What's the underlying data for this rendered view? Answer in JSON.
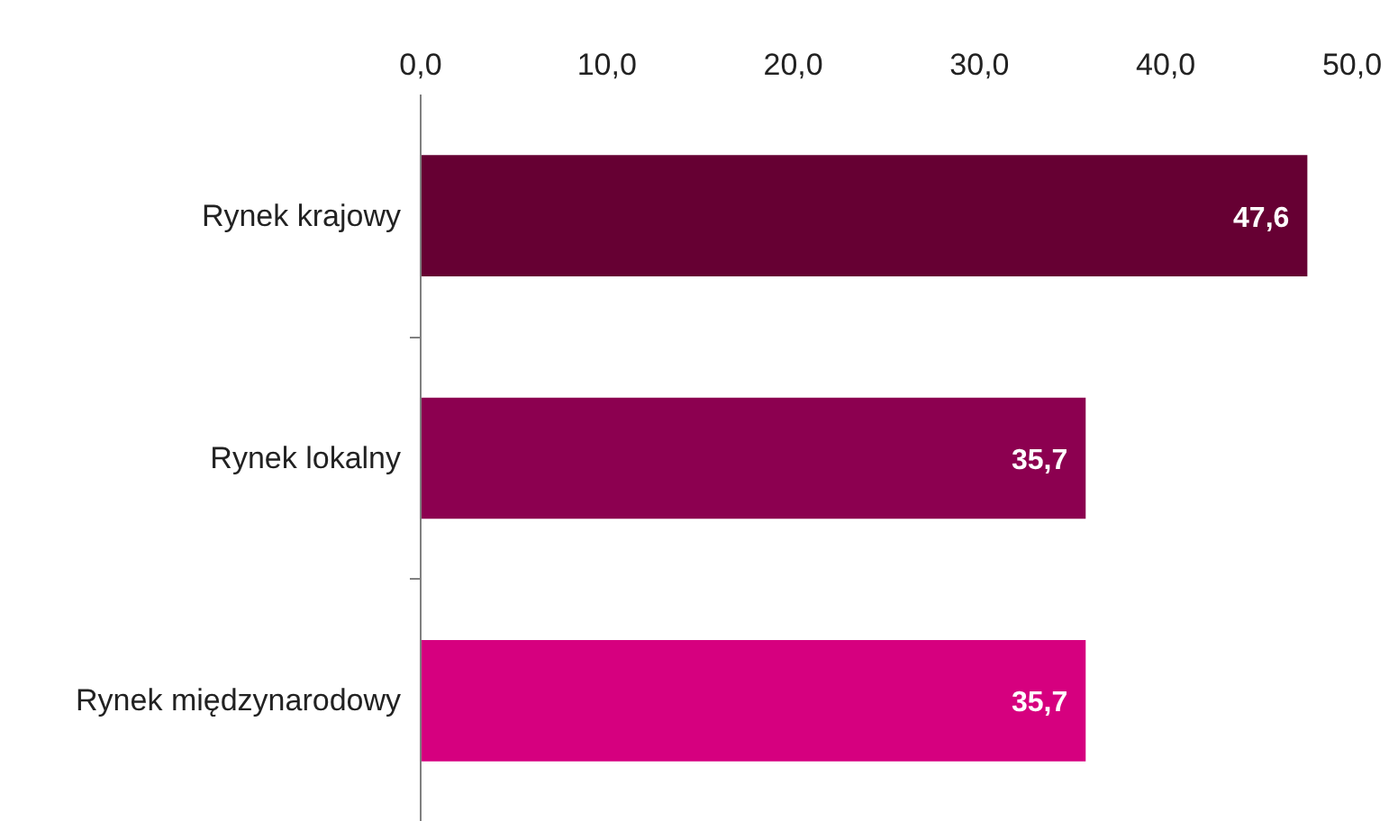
{
  "chart_data": {
    "type": "bar",
    "orientation": "horizontal",
    "categories": [
      "Rynek krajowy",
      "Rynek lokalny",
      "Rynek międzynarodowy"
    ],
    "values": [
      47.6,
      35.7,
      35.7
    ],
    "colors": [
      "#660033",
      "#8c0050",
      "#d6007f"
    ],
    "value_labels": [
      "47,6",
      "35,7",
      "35,7"
    ],
    "xlim": [
      0,
      50
    ],
    "xticks": [
      {
        "value": 0,
        "label": "0,0"
      },
      {
        "value": 10,
        "label": "10,0"
      },
      {
        "value": 20,
        "label": "20,0"
      },
      {
        "value": 30,
        "label": "30,0"
      },
      {
        "value": 40,
        "label": "40,0"
      },
      {
        "value": 50,
        "label": "50,0"
      }
    ],
    "grid": false
  }
}
